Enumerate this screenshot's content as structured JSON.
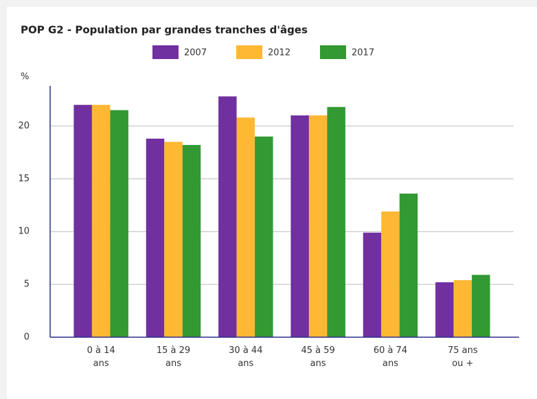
{
  "chart_data": {
    "type": "bar",
    "title": "POP G2 - Population par grandes tranches d'âges",
    "y_label": "%",
    "categories": [
      "0 à 14\nans",
      "15 à 29\nans",
      "30 à 44\nans",
      "45 à 59\nans",
      "60 à 74\nans",
      "75 ans\nou +"
    ],
    "series": [
      {
        "name": "2007",
        "color": "#7030a0",
        "values": [
          22.0,
          18.8,
          22.8,
          21.0,
          9.9,
          5.2
        ]
      },
      {
        "name": "2012",
        "color": "#ffb833",
        "values": [
          22.0,
          18.5,
          20.8,
          21.0,
          11.9,
          5.4
        ]
      },
      {
        "name": "2017",
        "color": "#339933",
        "values": [
          21.5,
          18.2,
          19.0,
          21.8,
          13.6,
          5.9
        ]
      }
    ],
    "ylim": [
      0,
      23.8
    ],
    "yticks": [
      0,
      5,
      10,
      15,
      20
    ],
    "grid": true,
    "legend": "top"
  }
}
